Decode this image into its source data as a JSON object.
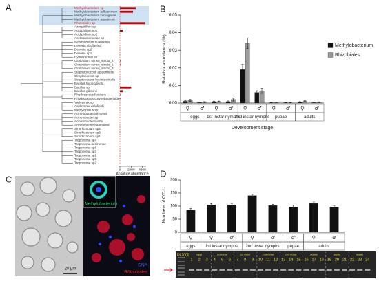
{
  "panels": [
    "A",
    "B",
    "C",
    "D"
  ],
  "chart_data": [
    {
      "type": "bar",
      "orientation": "horizontal",
      "categories": [
        "Methylobacterium sp",
        "Methylobacterium adhaesivum",
        "Methylobacterium komagatae",
        "Methylobacterium aquaticum",
        "Rhizobiales sp",
        "Azospirillum sp",
        "Acidiphilium sp1",
        "Acidiphilium sp2",
        "Acetobacteraceae sp",
        "Neorhizobium huautlense",
        "Devosia riboflavina",
        "Devosia sp2",
        "Devosia sp1",
        "Hyphomonas sp",
        "Clostridium sensu_stricto_2",
        "Clostridium sensu_stricto_1",
        "Clostridium sensu_stricto_3",
        "Staphylococcus epidermidis",
        "Streptococcus sp",
        "Streptococcus hyointestinalis",
        "Bacillus tryposylicola",
        "Bacillus sp",
        "Bacillus gibsonii",
        "Rhodococcus fascians",
        "Rhodococcus corynebacterioides",
        "Variovorax sp",
        "Acidovorax delafieldii",
        "Methylophilus sp",
        "Acinetobacter johnsonii",
        "Acinetobacter sp",
        "Acinetobacter lwoffii",
        "Acinetobacter baumannii",
        "Sinorhizobium sp2",
        "Sinorhizobium sp3",
        "Sinorhizobium sp1",
        "Treponema sp4",
        "Treponema berlinense",
        "Treponema sp6",
        "Treponema sp3",
        "Treponema sp1",
        "Treponema sp5",
        "Treponema sp2"
      ],
      "values": [
        3400,
        2800,
        0,
        0,
        5400,
        0,
        600,
        0,
        0,
        0,
        0,
        0,
        0,
        0,
        100,
        100,
        0,
        0,
        0,
        0,
        0,
        2400,
        600,
        100,
        0,
        0,
        0,
        0,
        0,
        0,
        0,
        0,
        0,
        0,
        0,
        0,
        0,
        0,
        0,
        0,
        0,
        0
      ],
      "color": "#c00000",
      "highlight": [
        0,
        4
      ],
      "highlight_color": "#e02020",
      "xlim": [
        0,
        5600
      ],
      "xticks": [
        0,
        2400,
        4800
      ],
      "xlabel": "Absolute abundance"
    },
    {
      "type": "bar",
      "categories": [
        "♀",
        "♂",
        "♀",
        "♂",
        "♀",
        "♂",
        "♀",
        "♂",
        "♀",
        "♂"
      ],
      "groups": [
        {
          "name": "eggs",
          "size": 2
        },
        {
          "name": "1st instar nymphs",
          "size": 2
        },
        {
          "name": "2nd instar nymphs",
          "size": 2
        },
        {
          "name": "pupae",
          "size": 2
        },
        {
          "name": "adults",
          "size": 2
        }
      ],
      "series": [
        {
          "name": "Methylobacterium",
          "color": "#111111",
          "values": [
            0.001,
            0.0003,
            0.0008,
            0.0008,
            0.019,
            0.006,
            0.0002,
            0.0002,
            0.0005,
            0.0003
          ],
          "errors": [
            0.0004,
            0.0002,
            0.0003,
            0.0004,
            0.003,
            0.001,
            0.0001,
            0.0001,
            0.0003,
            0.0002
          ]
        },
        {
          "name": "Rhizobiales",
          "color": "#999999",
          "values": [
            0.0015,
            0.0005,
            0.0008,
            0.002,
            0.034,
            0.007,
            0.0003,
            0.0002,
            0.0012,
            0.0005
          ],
          "errors": [
            0.0006,
            0.0003,
            0.0003,
            0.0008,
            0.003,
            0.0015,
            0.0001,
            0.0001,
            0.0004,
            0.0002
          ]
        }
      ],
      "ylim": [
        0,
        0.05
      ],
      "yticks": [
        {
          "value": 0,
          "label": "0.00"
        },
        0.01,
        0.02,
        0.03,
        0.04,
        0.05
      ],
      "ylabel": "Relative abundance (%)",
      "xlabel": "Development stage"
    },
    {
      "type": "bar",
      "categories": [
        "♀",
        "♀",
        "♂",
        "♀",
        "♂",
        "♂",
        "♀",
        "♂"
      ],
      "groups": [
        {
          "name": "eggs",
          "size": 1
        },
        {
          "name": "1st instar nymphs",
          "size": 2
        },
        {
          "name": "2nd instar nymphs",
          "size": 2
        },
        {
          "name": "pupae",
          "size": 1
        },
        {
          "name": "adults",
          "size": 2
        }
      ],
      "values": [
        85,
        105,
        105,
        140,
        102,
        97,
        110,
        96
      ],
      "errors": [
        6,
        5,
        5,
        5,
        5,
        6,
        6,
        5
      ],
      "color": "#111111",
      "ylim": [
        0,
        200
      ],
      "yticks": [
        0,
        50,
        100,
        150,
        200
      ],
      "ylabel": "Numbers of OTU"
    }
  ],
  "microscopy": {
    "scale_bar": "20 μm",
    "labels": [
      "Methylobacterium",
      "DNA",
      "Rhizobiales"
    ]
  },
  "gel": {
    "ladder": "DL2000",
    "lanes": [
      "1",
      "2",
      "3",
      "4",
      "5",
      "6",
      "7",
      "8",
      "9",
      "10",
      "11",
      "12",
      "13",
      "14",
      "15",
      "16",
      "17",
      "18",
      "19",
      "20",
      "21",
      "22",
      "23",
      "24"
    ],
    "stages": [
      "eggs",
      "1st instar",
      "1st instar",
      "2nd instar",
      "2nd instar",
      "pupae",
      "adults",
      "adults"
    ]
  }
}
